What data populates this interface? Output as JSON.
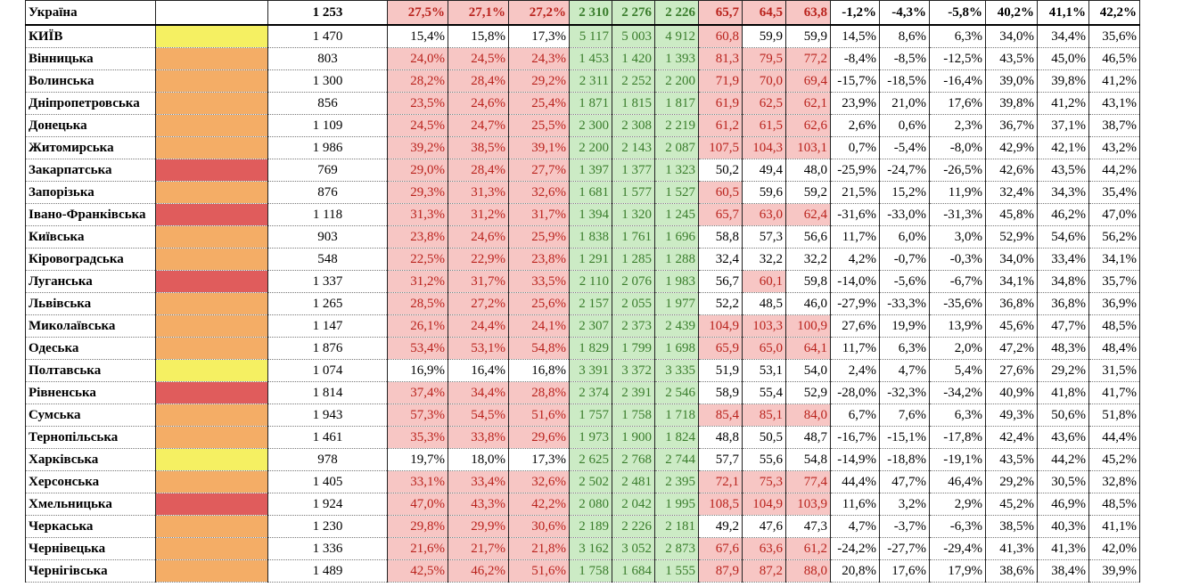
{
  "colors": {
    "yellow": "#f5f062",
    "orange": "#f4ad66",
    "red": "#e05c5c",
    "pink_bg": "#f7c6c4",
    "green_bg": "#ccebc5",
    "red_text": "#b9221c",
    "green_text": "#3a7d2c"
  },
  "rows": [
    {
      "name": "Україна",
      "color": "",
      "num": "1 253",
      "pct": [
        "27,5%",
        "27,1%",
        "27,2%"
      ],
      "pct_style": "red-bg",
      "cnt": [
        "2 310",
        "2 276",
        "2 226"
      ],
      "cnt_style": "green-bg",
      "val": [
        "65,7",
        "64,5",
        "63,8"
      ],
      "val_style": [
        "red-bg",
        "red-bg",
        "red-bg"
      ],
      "grow": [
        "-1,2%",
        "-4,3%",
        "-5,8%"
      ],
      "share": [
        "40,2%",
        "41,1%",
        "42,2%"
      ]
    },
    {
      "name": "КИЇВ",
      "color": "#f5f062",
      "num": "1 470",
      "pct": [
        "15,4%",
        "15,8%",
        "17,3%"
      ],
      "pct_style": "",
      "cnt": [
        "5 117",
        "5 003",
        "4 912"
      ],
      "cnt_style": "green-bg",
      "val": [
        "60,8",
        "59,9",
        "59,9"
      ],
      "val_style": [
        "red-bg",
        "",
        ""
      ],
      "grow": [
        "14,5%",
        "8,6%",
        "6,3%"
      ],
      "share": [
        "34,0%",
        "34,4%",
        "35,6%"
      ]
    },
    {
      "name": "Вінницька",
      "color": "#f4ad66",
      "num": "803",
      "pct": [
        "24,0%",
        "24,5%",
        "24,3%"
      ],
      "pct_style": "red-bg",
      "cnt": [
        "1 453",
        "1 420",
        "1 393"
      ],
      "cnt_style": "green-bg",
      "val": [
        "81,3",
        "79,5",
        "77,2"
      ],
      "val_style": [
        "red-bg",
        "red-bg",
        "red-bg"
      ],
      "grow": [
        "-8,4%",
        "-8,5%",
        "-12,5%"
      ],
      "share": [
        "43,5%",
        "45,0%",
        "46,5%"
      ]
    },
    {
      "name": "Волинська",
      "color": "#f4ad66",
      "num": "1 300",
      "pct": [
        "28,2%",
        "28,4%",
        "29,2%"
      ],
      "pct_style": "red-bg",
      "cnt": [
        "2 311",
        "2 252",
        "2 200"
      ],
      "cnt_style": "green-bg",
      "val": [
        "71,9",
        "70,0",
        "69,4"
      ],
      "val_style": [
        "red-bg",
        "red-bg",
        "red-bg"
      ],
      "grow": [
        "-15,7%",
        "-18,5%",
        "-16,4%"
      ],
      "share": [
        "39,0%",
        "39,8%",
        "41,2%"
      ]
    },
    {
      "name": "Дніпропетровська",
      "color": "#f4ad66",
      "num": "856",
      "pct": [
        "23,5%",
        "24,6%",
        "25,4%"
      ],
      "pct_style": "red-bg",
      "cnt": [
        "1 871",
        "1 815",
        "1 817"
      ],
      "cnt_style": "green-bg",
      "val": [
        "61,9",
        "62,5",
        "62,1"
      ],
      "val_style": [
        "red-bg",
        "red-bg",
        "red-bg"
      ],
      "grow": [
        "23,9%",
        "21,0%",
        "17,6%"
      ],
      "share": [
        "39,8%",
        "41,2%",
        "43,1%"
      ]
    },
    {
      "name": "Донецька",
      "color": "#f4ad66",
      "num": "1 109",
      "pct": [
        "24,5%",
        "24,7%",
        "25,5%"
      ],
      "pct_style": "red-bg",
      "cnt": [
        "2 300",
        "2 308",
        "2 219"
      ],
      "cnt_style": "green-bg",
      "val": [
        "61,2",
        "61,5",
        "62,6"
      ],
      "val_style": [
        "red-bg",
        "red-bg",
        "red-bg"
      ],
      "grow": [
        "2,6%",
        "0,6%",
        "2,3%"
      ],
      "share": [
        "36,7%",
        "37,1%",
        "38,7%"
      ]
    },
    {
      "name": "Житомирська",
      "color": "#f4ad66",
      "num": "1 986",
      "pct": [
        "39,2%",
        "38,5%",
        "39,1%"
      ],
      "pct_style": "red-bg",
      "cnt": [
        "2 200",
        "2 143",
        "2 087"
      ],
      "cnt_style": "green-bg",
      "val": [
        "107,5",
        "104,3",
        "103,1"
      ],
      "val_style": [
        "red-bg",
        "red-bg",
        "red-bg"
      ],
      "grow": [
        "0,7%",
        "-5,4%",
        "-8,0%"
      ],
      "share": [
        "42,9%",
        "42,1%",
        "43,2%"
      ]
    },
    {
      "name": "Закарпатська",
      "color": "#e05c5c",
      "num": "769",
      "pct": [
        "29,0%",
        "28,4%",
        "27,7%"
      ],
      "pct_style": "red-bg",
      "cnt": [
        "1 397",
        "1 377",
        "1 323"
      ],
      "cnt_style": "green-bg",
      "val": [
        "50,2",
        "49,4",
        "48,0"
      ],
      "val_style": [
        "",
        "",
        ""
      ],
      "grow": [
        "-25,9%",
        "-24,7%",
        "-26,5%"
      ],
      "share": [
        "42,6%",
        "43,5%",
        "44,2%"
      ]
    },
    {
      "name": "Запорізька",
      "color": "#f4ad66",
      "num": "876",
      "pct": [
        "29,3%",
        "31,3%",
        "32,6%"
      ],
      "pct_style": "red-bg",
      "cnt": [
        "1 681",
        "1 577",
        "1 527"
      ],
      "cnt_style": "green-bg",
      "val": [
        "60,5",
        "59,6",
        "59,2"
      ],
      "val_style": [
        "red-bg",
        "",
        ""
      ],
      "grow": [
        "21,5%",
        "15,2%",
        "11,9%"
      ],
      "share": [
        "32,4%",
        "34,3%",
        "35,4%"
      ]
    },
    {
      "name": "Івано-Франківська",
      "color": "#e05c5c",
      "num": "1 118",
      "pct": [
        "31,3%",
        "31,2%",
        "31,7%"
      ],
      "pct_style": "red-bg",
      "cnt": [
        "1 394",
        "1 320",
        "1 245"
      ],
      "cnt_style": "green-bg",
      "val": [
        "65,7",
        "63,0",
        "62,4"
      ],
      "val_style": [
        "red-bg",
        "red-bg",
        "red-bg"
      ],
      "grow": [
        "-31,6%",
        "-33,0%",
        "-31,3%"
      ],
      "share": [
        "45,8%",
        "46,2%",
        "47,0%"
      ]
    },
    {
      "name": "Київська",
      "color": "#f4ad66",
      "num": "903",
      "pct": [
        "23,8%",
        "24,6%",
        "25,9%"
      ],
      "pct_style": "red-bg",
      "cnt": [
        "1 838",
        "1 761",
        "1 696"
      ],
      "cnt_style": "green-bg",
      "val": [
        "58,8",
        "57,3",
        "56,6"
      ],
      "val_style": [
        "",
        "",
        ""
      ],
      "grow": [
        "11,7%",
        "6,0%",
        "3,0%"
      ],
      "share": [
        "52,9%",
        "54,6%",
        "56,2%"
      ]
    },
    {
      "name": "Кіровоградська",
      "color": "#f4ad66",
      "num": "548",
      "pct": [
        "22,5%",
        "22,9%",
        "23,8%"
      ],
      "pct_style": "red-bg",
      "cnt": [
        "1 291",
        "1 285",
        "1 288"
      ],
      "cnt_style": "green-bg",
      "val": [
        "32,4",
        "32,2",
        "32,2"
      ],
      "val_style": [
        "",
        "",
        ""
      ],
      "grow": [
        "4,2%",
        "-0,7%",
        "-0,3%"
      ],
      "share": [
        "34,0%",
        "33,4%",
        "34,1%"
      ]
    },
    {
      "name": "Луганська",
      "color": "#e05c5c",
      "num": "1 337",
      "pct": [
        "31,2%",
        "31,7%",
        "33,5%"
      ],
      "pct_style": "red-bg",
      "cnt": [
        "2 110",
        "2 076",
        "1 983"
      ],
      "cnt_style": "green-bg",
      "val": [
        "56,7",
        "60,1",
        "59,8"
      ],
      "val_style": [
        "",
        "red-bg",
        ""
      ],
      "grow": [
        "-14,0%",
        "-5,6%",
        "-6,7%"
      ],
      "share": [
        "34,1%",
        "34,8%",
        "35,7%"
      ]
    },
    {
      "name": "Львівська",
      "color": "#f4ad66",
      "num": "1 265",
      "pct": [
        "28,5%",
        "27,2%",
        "25,6%"
      ],
      "pct_style": "red-bg",
      "cnt": [
        "2 157",
        "2 055",
        "1 977"
      ],
      "cnt_style": "green-bg",
      "val": [
        "52,2",
        "48,5",
        "46,0"
      ],
      "val_style": [
        "",
        "",
        ""
      ],
      "grow": [
        "-27,9%",
        "-33,3%",
        "-35,6%"
      ],
      "share": [
        "36,8%",
        "36,8%",
        "36,9%"
      ]
    },
    {
      "name": "Миколаївська",
      "color": "#f4ad66",
      "num": "1 147",
      "pct": [
        "26,1%",
        "24,4%",
        "24,1%"
      ],
      "pct_style": "red-bg",
      "cnt": [
        "2 307",
        "2 373",
        "2 439"
      ],
      "cnt_style": "green-bg",
      "val": [
        "104,9",
        "103,3",
        "100,9"
      ],
      "val_style": [
        "red-bg",
        "red-bg",
        "red-bg"
      ],
      "grow": [
        "27,6%",
        "19,9%",
        "13,9%"
      ],
      "share": [
        "45,6%",
        "47,7%",
        "48,5%"
      ]
    },
    {
      "name": "Одеська",
      "color": "#f4ad66",
      "num": "1 876",
      "pct": [
        "53,4%",
        "53,1%",
        "54,8%"
      ],
      "pct_style": "red-bg",
      "cnt": [
        "1 829",
        "1 799",
        "1 698"
      ],
      "cnt_style": "green-bg",
      "val": [
        "65,9",
        "65,0",
        "64,1"
      ],
      "val_style": [
        "red-bg",
        "red-bg",
        "red-bg"
      ],
      "grow": [
        "11,7%",
        "6,3%",
        "2,0%"
      ],
      "share": [
        "47,2%",
        "48,3%",
        "48,4%"
      ]
    },
    {
      "name": "Полтавська",
      "color": "#f5f062",
      "num": "1 074",
      "pct": [
        "16,9%",
        "16,4%",
        "16,8%"
      ],
      "pct_style": "",
      "cnt": [
        "3 391",
        "3 372",
        "3 335"
      ],
      "cnt_style": "green-bg",
      "val": [
        "51,9",
        "53,1",
        "54,0"
      ],
      "val_style": [
        "",
        "",
        ""
      ],
      "grow": [
        "2,4%",
        "4,7%",
        "5,4%"
      ],
      "share": [
        "27,6%",
        "29,2%",
        "31,5%"
      ]
    },
    {
      "name": "Рівненська",
      "color": "#e05c5c",
      "num": "1 814",
      "pct": [
        "37,4%",
        "34,4%",
        "28,8%"
      ],
      "pct_style": "red-bg",
      "cnt": [
        "2 374",
        "2 391",
        "2 546"
      ],
      "cnt_style": "green-bg",
      "val": [
        "58,9",
        "55,4",
        "52,9"
      ],
      "val_style": [
        "",
        "",
        ""
      ],
      "grow": [
        "-28,0%",
        "-32,3%",
        "-34,2%"
      ],
      "share": [
        "40,9%",
        "41,8%",
        "41,7%"
      ]
    },
    {
      "name": "Сумська",
      "color": "#f4ad66",
      "num": "1 943",
      "pct": [
        "57,3%",
        "54,5%",
        "51,6%"
      ],
      "pct_style": "red-bg",
      "cnt": [
        "1 757",
        "1 758",
        "1 718"
      ],
      "cnt_style": "green-bg",
      "val": [
        "85,4",
        "85,1",
        "84,0"
      ],
      "val_style": [
        "red-bg",
        "red-bg",
        "red-bg"
      ],
      "grow": [
        "6,7%",
        "7,6%",
        "6,3%"
      ],
      "share": [
        "49,3%",
        "50,6%",
        "51,8%"
      ]
    },
    {
      "name": "Тернопільська",
      "color": "#f4ad66",
      "num": "1 461",
      "pct": [
        "35,3%",
        "33,8%",
        "29,6%"
      ],
      "pct_style": "red-bg",
      "cnt": [
        "1 973",
        "1 900",
        "1 824"
      ],
      "cnt_style": "green-bg",
      "val": [
        "48,8",
        "50,5",
        "48,7"
      ],
      "val_style": [
        "",
        "",
        ""
      ],
      "grow": [
        "-16,7%",
        "-15,1%",
        "-17,8%"
      ],
      "share": [
        "42,4%",
        "43,6%",
        "44,4%"
      ]
    },
    {
      "name": "Харківська",
      "color": "#f5f062",
      "num": "978",
      "pct": [
        "19,7%",
        "18,0%",
        "17,3%"
      ],
      "pct_style": "",
      "cnt": [
        "2 625",
        "2 768",
        "2 744"
      ],
      "cnt_style": "green-bg",
      "val": [
        "57,7",
        "55,6",
        "54,8"
      ],
      "val_style": [
        "",
        "",
        ""
      ],
      "grow": [
        "-14,9%",
        "-18,8%",
        "-19,1%"
      ],
      "share": [
        "43,5%",
        "44,2%",
        "45,2%"
      ]
    },
    {
      "name": "Херсонська",
      "color": "#f4ad66",
      "num": "1 405",
      "pct": [
        "33,1%",
        "33,4%",
        "32,6%"
      ],
      "pct_style": "red-bg",
      "cnt": [
        "2 502",
        "2 481",
        "2 395"
      ],
      "cnt_style": "green-bg",
      "val": [
        "72,1",
        "75,3",
        "77,4"
      ],
      "val_style": [
        "red-bg",
        "red-bg",
        "red-bg"
      ],
      "grow": [
        "44,4%",
        "47,7%",
        "46,4%"
      ],
      "share": [
        "29,2%",
        "30,5%",
        "32,8%"
      ]
    },
    {
      "name": "Хмельницька",
      "color": "#e05c5c",
      "num": "1 924",
      "pct": [
        "47,0%",
        "43,3%",
        "42,2%"
      ],
      "pct_style": "red-bg",
      "cnt": [
        "2 080",
        "2 042",
        "1 995"
      ],
      "cnt_style": "green-bg",
      "val": [
        "108,5",
        "104,9",
        "103,9"
      ],
      "val_style": [
        "red-bg",
        "red-bg",
        "red-bg"
      ],
      "grow": [
        "11,6%",
        "3,2%",
        "2,9%"
      ],
      "share": [
        "45,2%",
        "46,9%",
        "48,5%"
      ]
    },
    {
      "name": "Черкаська",
      "color": "#f4ad66",
      "num": "1 230",
      "pct": [
        "29,8%",
        "29,9%",
        "30,6%"
      ],
      "pct_style": "red-bg",
      "cnt": [
        "2 189",
        "2 226",
        "2 181"
      ],
      "cnt_style": "green-bg",
      "val": [
        "49,2",
        "47,6",
        "47,3"
      ],
      "val_style": [
        "",
        "",
        ""
      ],
      "grow": [
        "4,7%",
        "-3,7%",
        "-6,3%"
      ],
      "share": [
        "38,5%",
        "40,3%",
        "41,1%"
      ]
    },
    {
      "name": "Чернівецька",
      "color": "#f4ad66",
      "num": "1 336",
      "pct": [
        "21,6%",
        "21,7%",
        "21,8%"
      ],
      "pct_style": "red-bg",
      "cnt": [
        "3 162",
        "3 052",
        "2 873"
      ],
      "cnt_style": "green-bg",
      "val": [
        "67,6",
        "63,6",
        "61,2"
      ],
      "val_style": [
        "red-bg",
        "red-bg",
        "red-bg"
      ],
      "grow": [
        "-24,2%",
        "-27,7%",
        "-29,4%"
      ],
      "share": [
        "41,3%",
        "41,3%",
        "42,0%"
      ]
    },
    {
      "name": "Чернігівська",
      "color": "#f4ad66",
      "num": "1 489",
      "pct": [
        "42,5%",
        "46,2%",
        "51,6%"
      ],
      "pct_style": "red-bg",
      "cnt": [
        "1 758",
        "1 684",
        "1 555"
      ],
      "cnt_style": "green-bg",
      "val": [
        "87,9",
        "87,2",
        "88,0"
      ],
      "val_style": [
        "red-bg",
        "red-bg",
        "red-bg"
      ],
      "grow": [
        "20,8%",
        "17,6%",
        "17,9%"
      ],
      "share": [
        "38,6%",
        "38,4%",
        "39,9%"
      ]
    }
  ]
}
